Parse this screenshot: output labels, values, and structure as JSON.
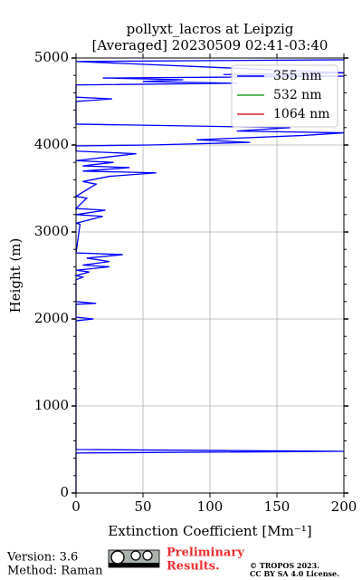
{
  "chart_data": {
    "type": "line",
    "title": "pollyxt_lacros at Leipzig",
    "subtitle": "[Averaged] 20230509 02:41-03:40",
    "x_label": "Extinction Coefficient [Mm⁻¹]",
    "y_label": "Height (m)",
    "y": [
      0,
      460,
      479,
      500,
      1980,
      2000,
      2020,
      2170,
      2180,
      2200,
      2450,
      2480,
      2500,
      2540,
      2560,
      2600,
      2620,
      2660,
      2700,
      2740,
      2760,
      3090,
      3100,
      3180,
      3200,
      3250,
      3270,
      3390,
      3410,
      3550,
      3580,
      3640,
      3680,
      3700,
      3740,
      3760,
      3800,
      3820,
      3900,
      3930,
      3990,
      4000,
      4030,
      4060,
      4110,
      4140,
      4160,
      4200,
      4240,
      4500,
      4530,
      4550,
      4690,
      4710,
      4730,
      4750,
      4770,
      4790,
      4810,
      4830,
      4960,
      4980,
      5000
    ],
    "series": [
      {
        "name": "355 nm",
        "color": "#0000ff",
        "values": [
          0,
          0,
          200,
          0,
          0,
          13,
          0,
          0,
          15,
          0,
          0,
          5,
          0,
          10,
          0,
          25,
          5,
          25,
          8,
          35,
          0,
          3,
          0,
          20,
          0,
          22,
          0,
          8,
          0,
          15,
          5,
          25,
          60,
          5,
          40,
          5,
          28,
          0,
          45,
          0,
          0,
          55,
          130,
          90,
          170,
          200,
          120,
          160,
          0,
          0,
          27,
          0,
          0,
          120,
          50,
          80,
          20,
          200,
          110,
          200,
          0,
          200,
          200
        ]
      },
      {
        "name": "532 nm",
        "color": "#2ca02c",
        "values": [
          null,
          null,
          null,
          null,
          null,
          null,
          null,
          null,
          null,
          null,
          null,
          null,
          null,
          null,
          null,
          null,
          null,
          null,
          null,
          null,
          null,
          null,
          null,
          null,
          null,
          null,
          null,
          null,
          null,
          null,
          null,
          null,
          null,
          null,
          null,
          null,
          null,
          null,
          null,
          null,
          null,
          null,
          null,
          null,
          null,
          null,
          null,
          null,
          null,
          null,
          null,
          null,
          null,
          null,
          null,
          null,
          null,
          null,
          null,
          null,
          null,
          null,
          null
        ]
      },
      {
        "name": "1064 nm",
        "color": "#d62728",
        "values": [
          null,
          null,
          null,
          null,
          null,
          null,
          null,
          null,
          null,
          null,
          null,
          null,
          null,
          null,
          null,
          null,
          null,
          null,
          null,
          null,
          null,
          null,
          null,
          null,
          null,
          null,
          null,
          null,
          null,
          null,
          null,
          null,
          null,
          null,
          null,
          null,
          null,
          null,
          null,
          null,
          null,
          null,
          null,
          null,
          null,
          null,
          null,
          null,
          null,
          null,
          null,
          null,
          null,
          null,
          null,
          null,
          null,
          null,
          null,
          null,
          null,
          null,
          null
        ]
      }
    ],
    "xlim": [
      0,
      200
    ],
    "xticks": [
      0,
      50,
      100,
      150,
      200
    ],
    "ylim": [
      0,
      5000
    ],
    "yticks": [
      0,
      1000,
      2000,
      3000,
      4000,
      5000
    ],
    "yticks_minor": [
      200,
      400,
      600,
      800,
      1200,
      1400,
      1600,
      1800,
      2200,
      2400,
      2600,
      2800,
      3200,
      3400,
      3600,
      3800,
      4200,
      4400,
      4600,
      4800
    ],
    "grid": true,
    "legend": "upper right"
  },
  "footer": {
    "version": "Version: 3.6",
    "method": "Method: Raman",
    "notice": [
      "Preliminary",
      "Results."
    ],
    "copyright": "© TROPOS 2023.",
    "license": "CC BY SA 4.0 License."
  }
}
